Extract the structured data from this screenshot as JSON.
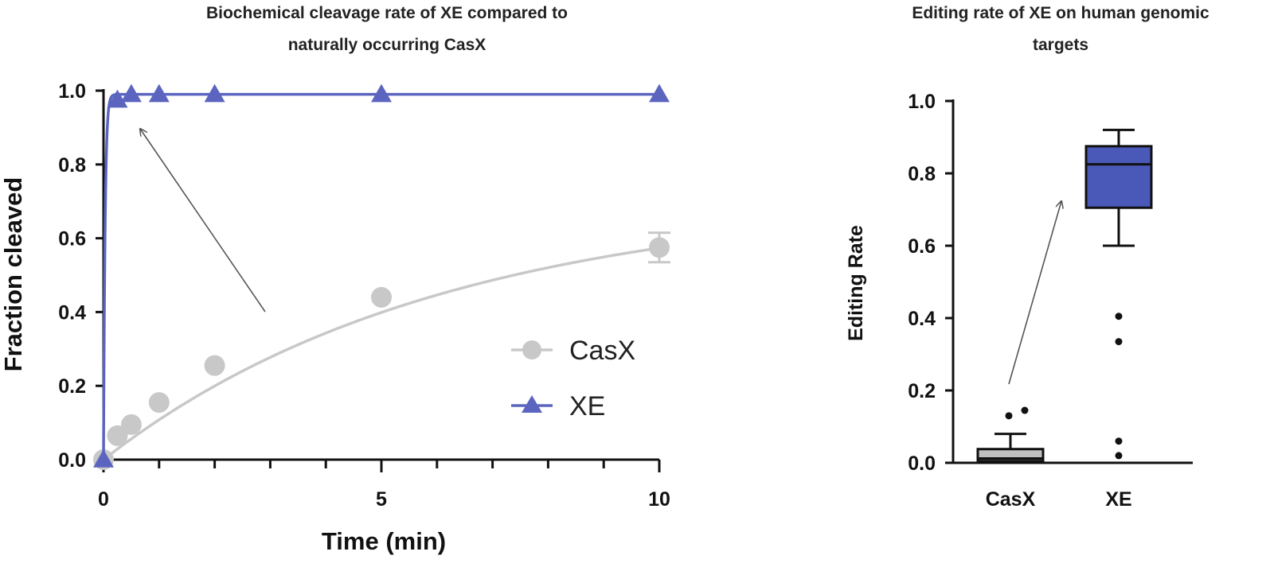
{
  "chart_data": [
    {
      "type": "line",
      "title": [
        "Biochemical cleavage rate of XE compared to",
        "naturally occurring CasX"
      ],
      "xlabel": "Time (min)",
      "ylabel": "Fraction cleaved",
      "xlim": [
        0,
        10
      ],
      "ylim": [
        0,
        1.0
      ],
      "xticks": [
        "0",
        "5",
        "10"
      ],
      "yticks": [
        "0.0",
        "0.2",
        "0.4",
        "0.6",
        "0.8",
        "1.0"
      ],
      "grid": false,
      "legend_position": "lower-right",
      "series": [
        {
          "name": "CasX",
          "marker": "circle",
          "color": "#c8c8c8",
          "x": [
            0,
            0.25,
            0.5,
            1,
            2,
            5,
            10
          ],
          "y": [
            0.0,
            0.065,
            0.095,
            0.155,
            0.255,
            0.44,
            0.575
          ],
          "error": [
            0,
            0,
            0,
            0,
            0,
            0,
            0.04
          ],
          "fit": {
            "plateau": 0.71,
            "k": 0.165
          }
        },
        {
          "name": "XE",
          "marker": "triangle",
          "color": "#5b65bf",
          "x": [
            0,
            0.25,
            0.5,
            1,
            2,
            5,
            10
          ],
          "y": [
            0.0,
            0.975,
            0.99,
            0.99,
            0.99,
            0.99,
            0.99
          ],
          "fit": {
            "plateau": 0.99,
            "k": 35
          }
        }
      ]
    },
    {
      "type": "box",
      "title": [
        "Editing rate of XE on human genomic",
        "targets"
      ],
      "xlabel": "",
      "ylabel": "Editing Rate",
      "ylim": [
        0,
        1.0
      ],
      "yticks": [
        "0.0",
        "0.2",
        "0.4",
        "0.6",
        "0.8",
        "1.0"
      ],
      "categories": [
        "CasX",
        "XE"
      ],
      "boxes": [
        {
          "name": "CasX",
          "color": "#c0c0c0",
          "whisker_low": 0.0,
          "q1": 0.005,
          "median": 0.012,
          "q3": 0.038,
          "whisker_high": 0.08,
          "outliers": [
            0.13,
            0.145
          ]
        },
        {
          "name": "XE",
          "color": "#4a58b8",
          "whisker_low": 0.6,
          "q1": 0.705,
          "median": 0.825,
          "q3": 0.875,
          "whisker_high": 0.92,
          "outliers": [
            0.405,
            0.335,
            0.06,
            0.02
          ]
        }
      ]
    }
  ]
}
